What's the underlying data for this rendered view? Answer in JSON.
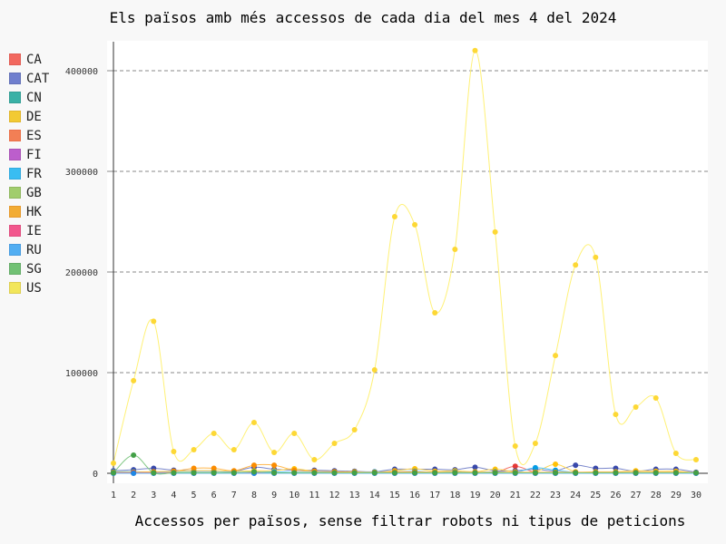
{
  "chart_data": {
    "type": "line",
    "title": "Els països amb més accessos de cada dia del mes 4 del 2024",
    "xlabel": "Accessos per països, sense filtrar robots ni tipus de peticions",
    "ylabel": "",
    "x": [
      1,
      2,
      3,
      4,
      5,
      6,
      7,
      8,
      9,
      10,
      11,
      12,
      13,
      14,
      15,
      16,
      17,
      18,
      19,
      20,
      21,
      22,
      23,
      24,
      25,
      26,
      27,
      28,
      29,
      30
    ],
    "ylim": [
      0,
      430000
    ],
    "yticks": [
      0,
      100000,
      200000,
      300000,
      400000
    ],
    "grid": "horizontal dashed",
    "legend_position": "left",
    "series": [
      {
        "name": "CA",
        "color": "#f4736b",
        "point": "#e53935",
        "values": [
          500,
          500,
          800,
          500,
          500,
          1000,
          500,
          500,
          500,
          500,
          500,
          500,
          500,
          500,
          500,
          500,
          500,
          500,
          500,
          800,
          7000,
          1000,
          1000,
          1000,
          500,
          500,
          500,
          500,
          500,
          500
        ]
      },
      {
        "name": "CAT",
        "color": "#7986cb",
        "point": "#3949ab",
        "values": [
          2500,
          3500,
          5000,
          3000,
          2500,
          2500,
          2000,
          6000,
          4000,
          3000,
          3000,
          2500,
          2000,
          1500,
          4000,
          4000,
          4000,
          3500,
          6000,
          2500,
          2500,
          4000,
          2500,
          8000,
          5000,
          5000,
          2000,
          4000,
          4000,
          1000
        ]
      },
      {
        "name": "CN",
        "color": "#4db6ac",
        "point": "#00897b",
        "values": [
          300,
          300,
          300,
          300,
          300,
          300,
          300,
          300,
          300,
          300,
          300,
          300,
          300,
          300,
          300,
          300,
          300,
          300,
          300,
          300,
          300,
          300,
          300,
          300,
          300,
          300,
          300,
          300,
          300,
          300
        ]
      },
      {
        "name": "DE",
        "color": "#ffd54f",
        "point": "#ffc107",
        "values": [
          1500,
          1500,
          1500,
          2000,
          2500,
          2500,
          2000,
          2500,
          2500,
          4500,
          2000,
          1500,
          1500,
          1000,
          2500,
          4500,
          2000,
          2500,
          1500,
          4000,
          1500,
          1500,
          9000,
          1500,
          1500,
          1500,
          2500,
          2000,
          2000,
          500
        ]
      },
      {
        "name": "ES",
        "color": "#ff8a65",
        "point": "#f4511e",
        "values": [
          800,
          800,
          800,
          800,
          1000,
          1000,
          800,
          1000,
          1000,
          800,
          800,
          800,
          800,
          800,
          800,
          800,
          800,
          800,
          800,
          800,
          800,
          800,
          800,
          800,
          800,
          800,
          800,
          800,
          800,
          500
        ]
      },
      {
        "name": "FI",
        "color": "#ba68c8",
        "point": "#8e24aa",
        "values": [
          200,
          200,
          200,
          200,
          200,
          200,
          200,
          200,
          200,
          200,
          200,
          200,
          200,
          200,
          200,
          200,
          200,
          200,
          200,
          200,
          200,
          200,
          200,
          200,
          200,
          200,
          200,
          200,
          200,
          200
        ]
      },
      {
        "name": "FR",
        "color": "#4fc3f7",
        "point": "#039be5",
        "values": [
          1500,
          1500,
          1000,
          1000,
          1000,
          1000,
          1000,
          1000,
          1500,
          1000,
          1000,
          1000,
          1000,
          1500,
          1500,
          2000,
          1000,
          1500,
          1000,
          1500,
          1000,
          5500,
          3000,
          1000,
          1000,
          1000,
          1000,
          1000,
          1000,
          500
        ]
      },
      {
        "name": "GB",
        "color": "#aed581",
        "point": "#7cb342",
        "values": [
          500,
          500,
          500,
          500,
          500,
          500,
          500,
          500,
          500,
          500,
          500,
          500,
          500,
          500,
          500,
          500,
          500,
          500,
          500,
          500,
          500,
          500,
          500,
          500,
          500,
          500,
          500,
          500,
          500,
          500
        ]
      },
      {
        "name": "HK",
        "color": "#ffb74d",
        "point": "#fb8c00",
        "values": [
          1000,
          1000,
          1500,
          2000,
          5000,
          5000,
          2500,
          8000,
          8000,
          3000,
          2000,
          1500,
          1000,
          1000,
          1500,
          1500,
          1000,
          1000,
          1000,
          1000,
          1000,
          1000,
          1000,
          1000,
          1000,
          1000,
          1000,
          1000,
          1000,
          500
        ]
      },
      {
        "name": "IE",
        "color": "#f06292",
        "point": "#d81b60",
        "values": [
          300,
          300,
          300,
          300,
          300,
          300,
          300,
          300,
          300,
          300,
          300,
          300,
          300,
          300,
          300,
          300,
          300,
          300,
          300,
          300,
          300,
          300,
          300,
          300,
          300,
          300,
          300,
          300,
          300,
          300
        ]
      },
      {
        "name": "RU",
        "color": "#64b5f6",
        "point": "#1e88e5",
        "values": [
          0,
          0,
          0,
          0,
          0,
          0,
          0,
          0,
          0,
          0,
          0,
          0,
          0,
          0,
          0,
          0,
          0,
          0,
          0,
          0,
          0,
          0,
          0,
          0,
          0,
          0,
          0,
          0,
          0,
          0
        ]
      },
      {
        "name": "SG",
        "color": "#81c784",
        "point": "#43a047",
        "values": [
          500,
          18000,
          500,
          500,
          500,
          500,
          500,
          1500,
          500,
          500,
          500,
          500,
          500,
          500,
          500,
          500,
          500,
          500,
          500,
          500,
          500,
          500,
          500,
          500,
          500,
          500,
          500,
          500,
          500,
          500
        ]
      },
      {
        "name": "US",
        "color": "#fff176",
        "point": "#fdd835",
        "values": [
          10000,
          92000,
          151000,
          21600,
          23400,
          39600,
          23400,
          50500,
          20700,
          39600,
          13500,
          29700,
          43200,
          102700,
          255000,
          247000,
          159500,
          222500,
          420000,
          239700,
          27000,
          29700,
          117000,
          207000,
          214500,
          58500,
          65800,
          74800,
          19800,
          13500
        ]
      }
    ]
  }
}
